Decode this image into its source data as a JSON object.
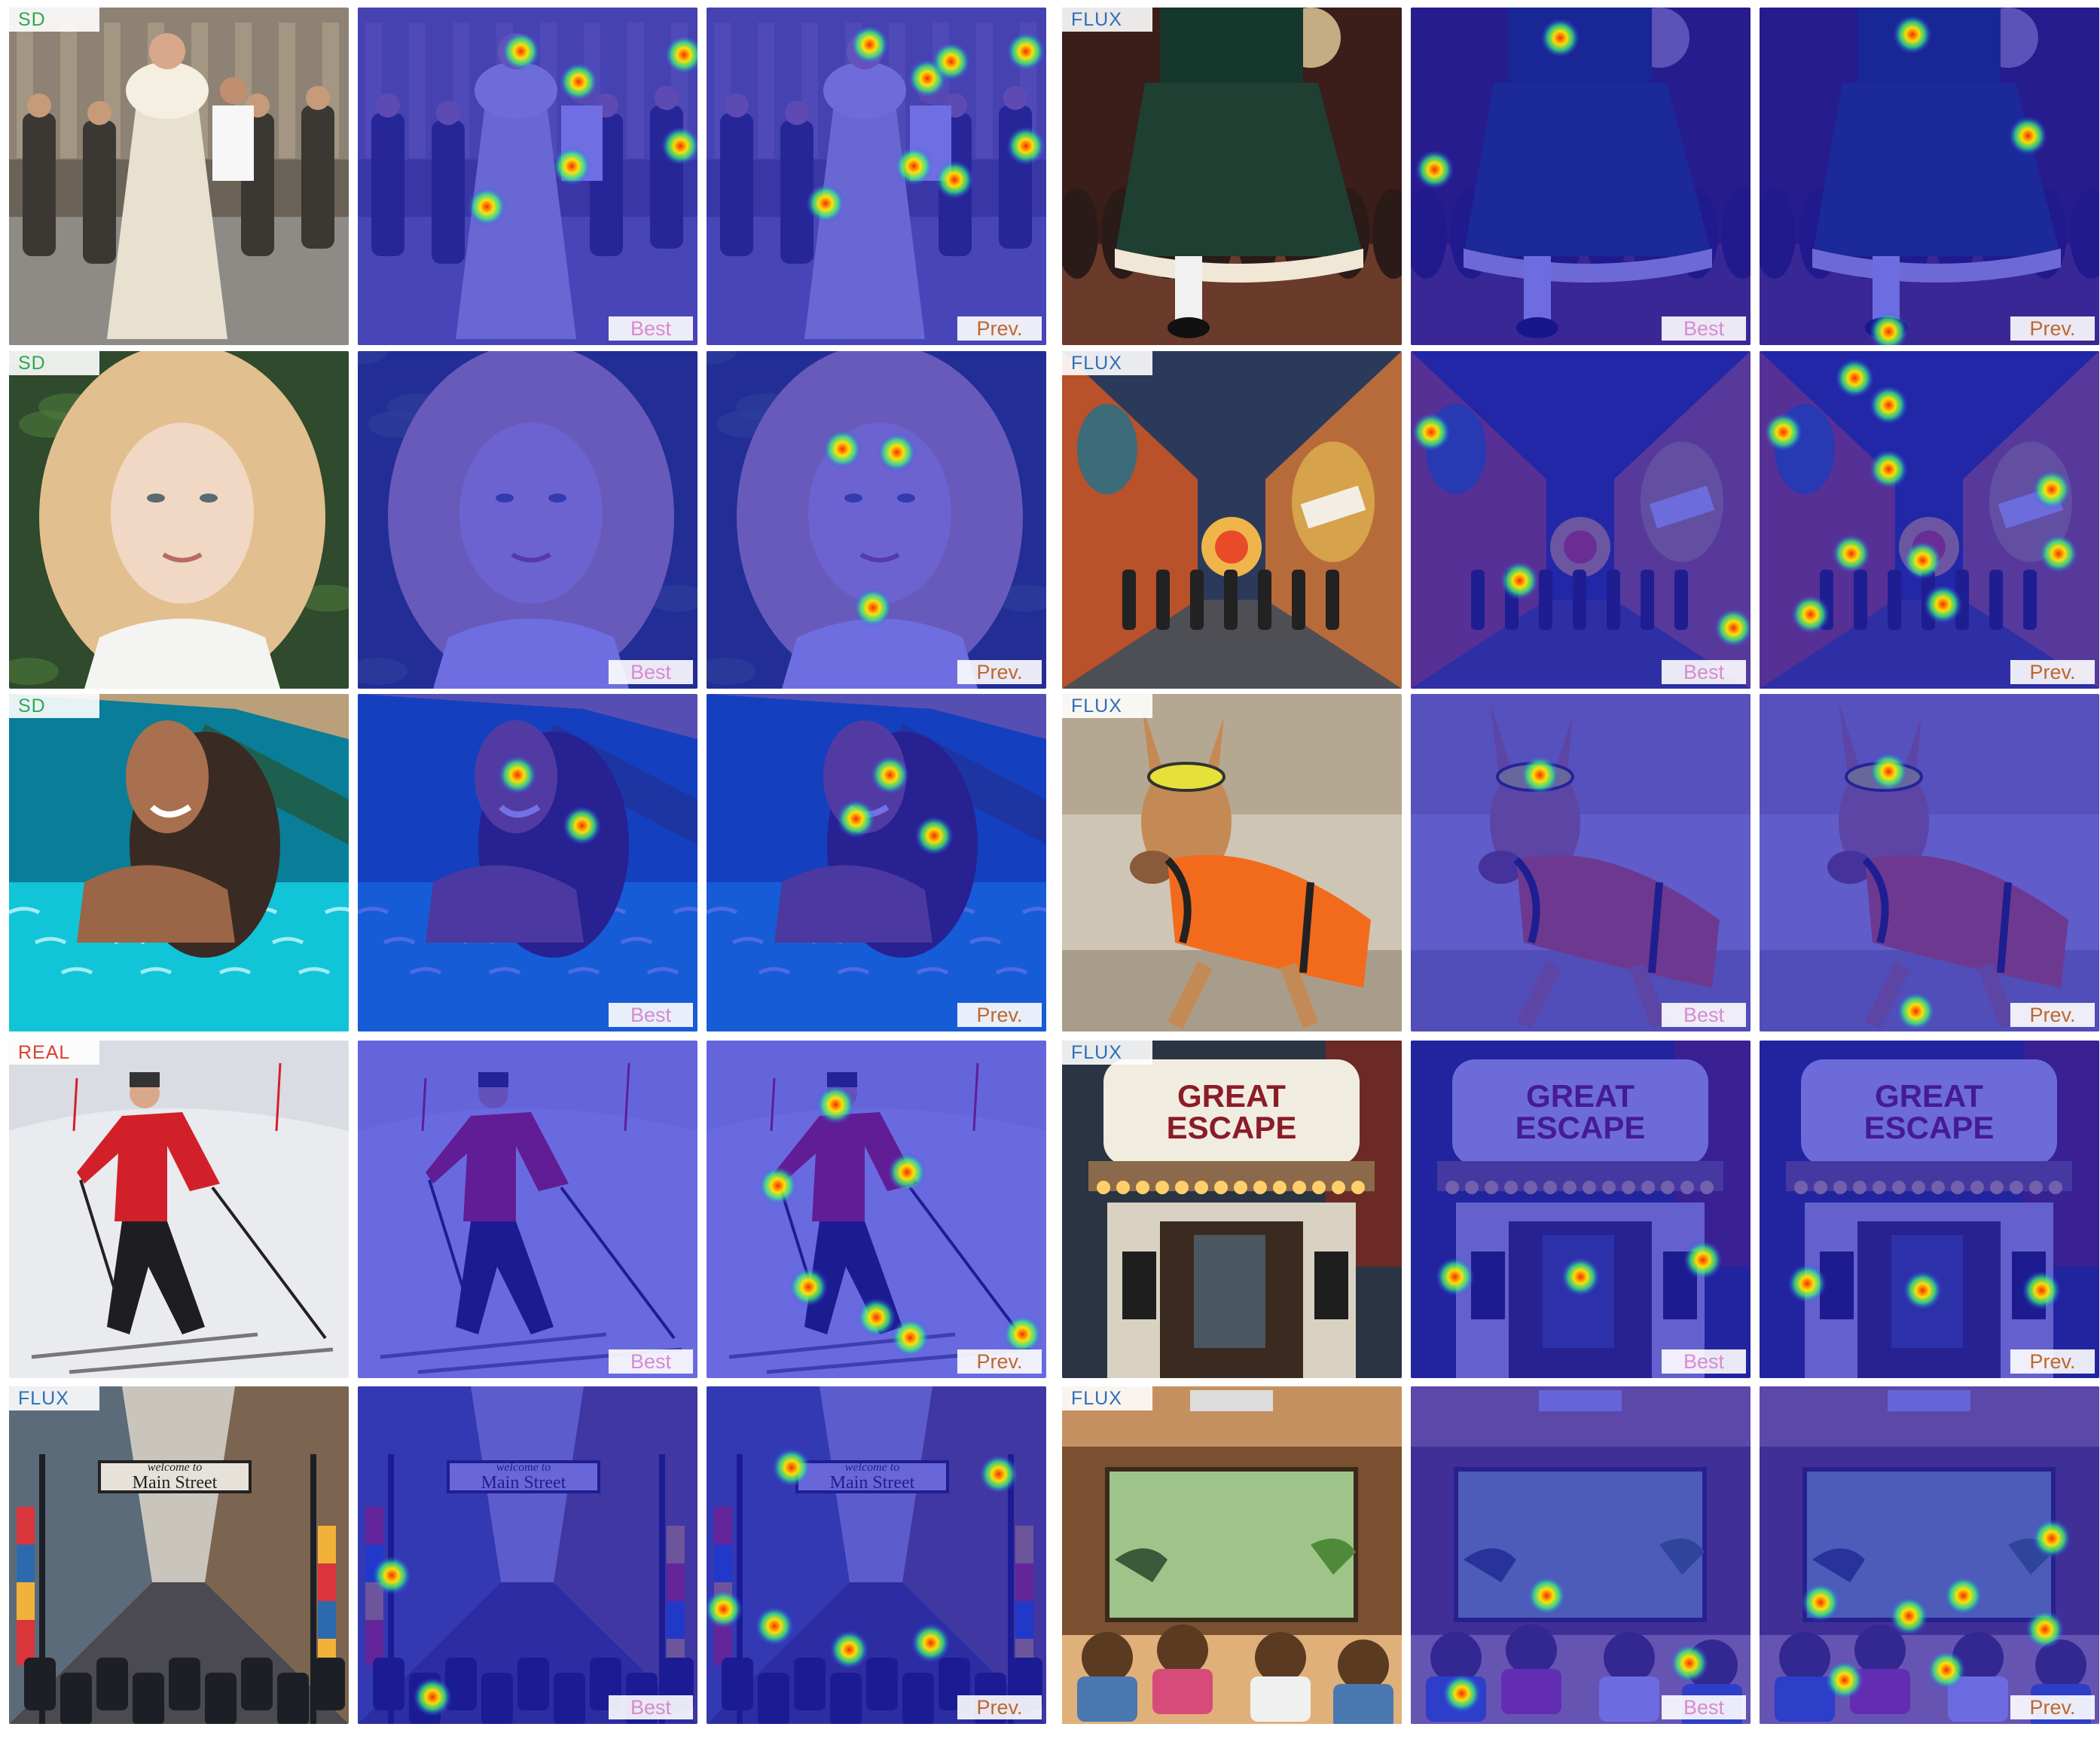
{
  "rows": [
    {
      "groups": [
        {
          "source": "SD",
          "source_color": "#2fa84f",
          "scene": "pope-walking",
          "palette": [
            "#6b6258",
            "#3b3833",
            "#e8e1cf"
          ],
          "markers": [
            "Best",
            "Prev."
          ]
        },
        {
          "source": "FLUX",
          "source_color": "#2e6fb7",
          "scene": "dancer-skirt",
          "palette": [
            "#3b1d1a",
            "#1f3f32",
            "#c98a3a"
          ],
          "markers": [
            "Best",
            "Prev."
          ]
        }
      ]
    },
    {
      "groups": [
        {
          "source": "SD",
          "source_color": "#2fa84f",
          "scene": "blonde-portrait",
          "palette": [
            "#2f4a2c",
            "#e2bf8e",
            "#f0d8c4"
          ],
          "markers": [
            "Best",
            "Prev."
          ]
        },
        {
          "source": "FLUX",
          "source_color": "#2e6fb7",
          "scene": "mural-hallway",
          "palette": [
            "#2b3a5a",
            "#b9512a",
            "#d6a24a"
          ],
          "markers": [
            "Best",
            "Prev."
          ]
        }
      ]
    },
    {
      "groups": [
        {
          "source": "SD",
          "source_color": "#2fa84f",
          "scene": "pool-woman",
          "palette": [
            "#0a7d98",
            "#12c4d8",
            "#3a2a24"
          ],
          "markers": [
            "Best",
            "Prev."
          ]
        },
        {
          "source": "FLUX",
          "source_color": "#2e6fb7",
          "scene": "kangaroo-vest",
          "palette": [
            "#cfc5b5",
            "#c48a55",
            "#f26b1d"
          ],
          "markers": [
            "Best",
            "Prev."
          ]
        }
      ]
    },
    {
      "groups": [
        {
          "source": "REAL",
          "source_color": "#d8412f",
          "scene": "skier",
          "palette": [
            "#e9ebee",
            "#d2202a",
            "#1e1e22"
          ],
          "markers": [
            "Best",
            "Prev."
          ]
        },
        {
          "source": "FLUX",
          "source_color": "#2e6fb7",
          "scene": "theater-marquee",
          "palette": [
            "#2a3443",
            "#f1ece0",
            "#ffcf6b"
          ],
          "markers": [
            "Best",
            "Prev."
          ]
        },
        {
          "marquee_text": [
            "GREAT",
            "ESCAPE"
          ]
        }
      ]
    },
    {
      "groups": [
        {
          "source": "FLUX",
          "source_color": "#2e6fb7",
          "scene": "main-street",
          "palette": [
            "#5b6b7a",
            "#c9c5bd",
            "#1c1f25"
          ],
          "markers": [
            "Best",
            "Prev."
          ],
          "sign_text": [
            "welcome to",
            "Main Street"
          ]
        },
        {
          "source": "FLUX",
          "source_color": "#2e6fb7",
          "scene": "classroom-dinosaurs",
          "palette": [
            "#7a5030",
            "#9fc48a",
            "#e0b07a"
          ],
          "markers": [
            "Best",
            "Prev."
          ]
        }
      ]
    }
  ]
}
